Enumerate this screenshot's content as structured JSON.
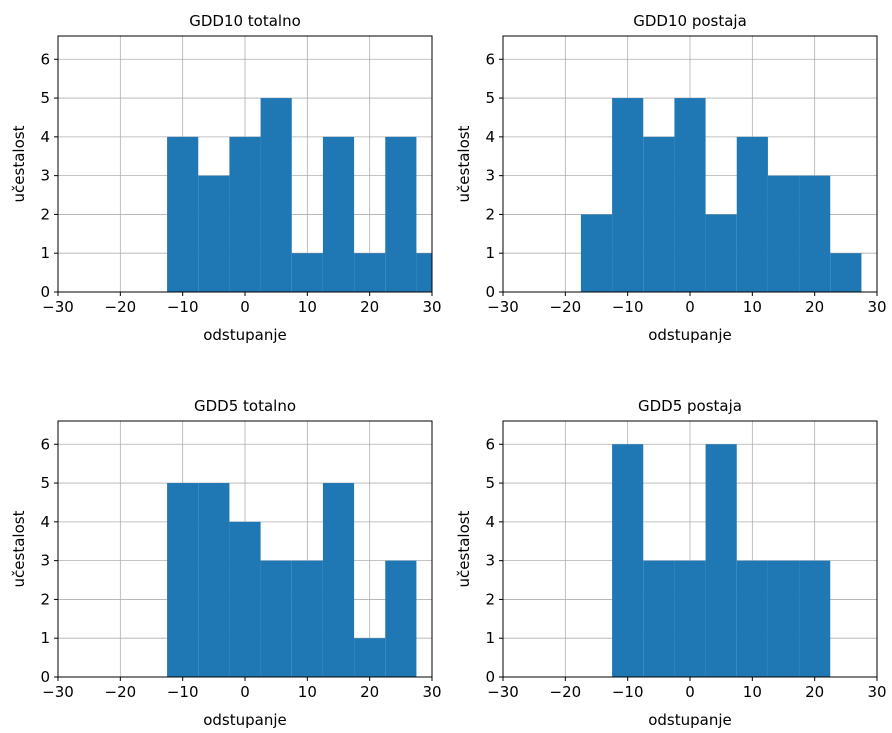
{
  "chart_data": [
    {
      "type": "bar",
      "title": "GDD10 totalno",
      "xlabel": "odstupanje",
      "ylabel": "učestalost",
      "xlim": [
        -30,
        30
      ],
      "ylim": [
        0,
        6.6
      ],
      "xticks": [
        -30,
        -20,
        -10,
        0,
        10,
        20,
        30
      ],
      "yticks": [
        0,
        1,
        2,
        3,
        4,
        5,
        6
      ],
      "grid": true,
      "bar_color": "#1f77b4",
      "bins": [
        {
          "x0": -12.5,
          "x1": -7.5,
          "value": 4
        },
        {
          "x0": -7.5,
          "x1": -2.5,
          "value": 3
        },
        {
          "x0": -2.5,
          "x1": 2.5,
          "value": 4
        },
        {
          "x0": 2.5,
          "x1": 7.5,
          "value": 5
        },
        {
          "x0": 7.5,
          "x1": 12.5,
          "value": 1
        },
        {
          "x0": 12.5,
          "x1": 17.5,
          "value": 4
        },
        {
          "x0": 17.5,
          "x1": 22.5,
          "value": 1
        },
        {
          "x0": 22.5,
          "x1": 27.5,
          "value": 4
        },
        {
          "x0": 27.5,
          "x1": 32.5,
          "value": 1
        }
      ]
    },
    {
      "type": "bar",
      "title": "GDD10 postaja",
      "xlabel": "odstupanje",
      "ylabel": "učestalost",
      "xlim": [
        -30,
        30
      ],
      "ylim": [
        0,
        6.6
      ],
      "xticks": [
        -30,
        -20,
        -10,
        0,
        10,
        20,
        30
      ],
      "yticks": [
        0,
        1,
        2,
        3,
        4,
        5,
        6
      ],
      "grid": true,
      "bar_color": "#1f77b4",
      "bins": [
        {
          "x0": -17.5,
          "x1": -12.5,
          "value": 2
        },
        {
          "x0": -12.5,
          "x1": -7.5,
          "value": 5
        },
        {
          "x0": -7.5,
          "x1": -2.5,
          "value": 4
        },
        {
          "x0": -2.5,
          "x1": 2.5,
          "value": 5
        },
        {
          "x0": 2.5,
          "x1": 7.5,
          "value": 2
        },
        {
          "x0": 7.5,
          "x1": 12.5,
          "value": 4
        },
        {
          "x0": 12.5,
          "x1": 17.5,
          "value": 3
        },
        {
          "x0": 17.5,
          "x1": 22.5,
          "value": 3
        },
        {
          "x0": 22.5,
          "x1": 27.5,
          "value": 1
        }
      ]
    },
    {
      "type": "bar",
      "title": "GDD5 totalno",
      "xlabel": "odstupanje",
      "ylabel": "učestalost",
      "xlim": [
        -30,
        30
      ],
      "ylim": [
        0,
        6.6
      ],
      "xticks": [
        -30,
        -20,
        -10,
        0,
        10,
        20,
        30
      ],
      "yticks": [
        0,
        1,
        2,
        3,
        4,
        5,
        6
      ],
      "grid": true,
      "bar_color": "#1f77b4",
      "bins": [
        {
          "x0": -12.5,
          "x1": -7.5,
          "value": 5
        },
        {
          "x0": -7.5,
          "x1": -2.5,
          "value": 5
        },
        {
          "x0": -2.5,
          "x1": 2.5,
          "value": 4
        },
        {
          "x0": 2.5,
          "x1": 7.5,
          "value": 3
        },
        {
          "x0": 7.5,
          "x1": 12.5,
          "value": 3
        },
        {
          "x0": 12.5,
          "x1": 17.5,
          "value": 5
        },
        {
          "x0": 17.5,
          "x1": 22.5,
          "value": 1
        },
        {
          "x0": 22.5,
          "x1": 27.5,
          "value": 3
        }
      ]
    },
    {
      "type": "bar",
      "title": "GDD5 postaja",
      "xlabel": "odstupanje",
      "ylabel": "učestalost",
      "xlim": [
        -30,
        30
      ],
      "ylim": [
        0,
        6.6
      ],
      "xticks": [
        -30,
        -20,
        -10,
        0,
        10,
        20,
        30
      ],
      "yticks": [
        0,
        1,
        2,
        3,
        4,
        5,
        6
      ],
      "grid": true,
      "bar_color": "#1f77b4",
      "bins": [
        {
          "x0": -12.5,
          "x1": -7.5,
          "value": 6
        },
        {
          "x0": -7.5,
          "x1": -2.5,
          "value": 3
        },
        {
          "x0": -2.5,
          "x1": 2.5,
          "value": 3
        },
        {
          "x0": 2.5,
          "x1": 7.5,
          "value": 6
        },
        {
          "x0": 7.5,
          "x1": 12.5,
          "value": 3
        },
        {
          "x0": 12.5,
          "x1": 17.5,
          "value": 3
        },
        {
          "x0": 17.5,
          "x1": 22.5,
          "value": 3
        }
      ]
    }
  ]
}
